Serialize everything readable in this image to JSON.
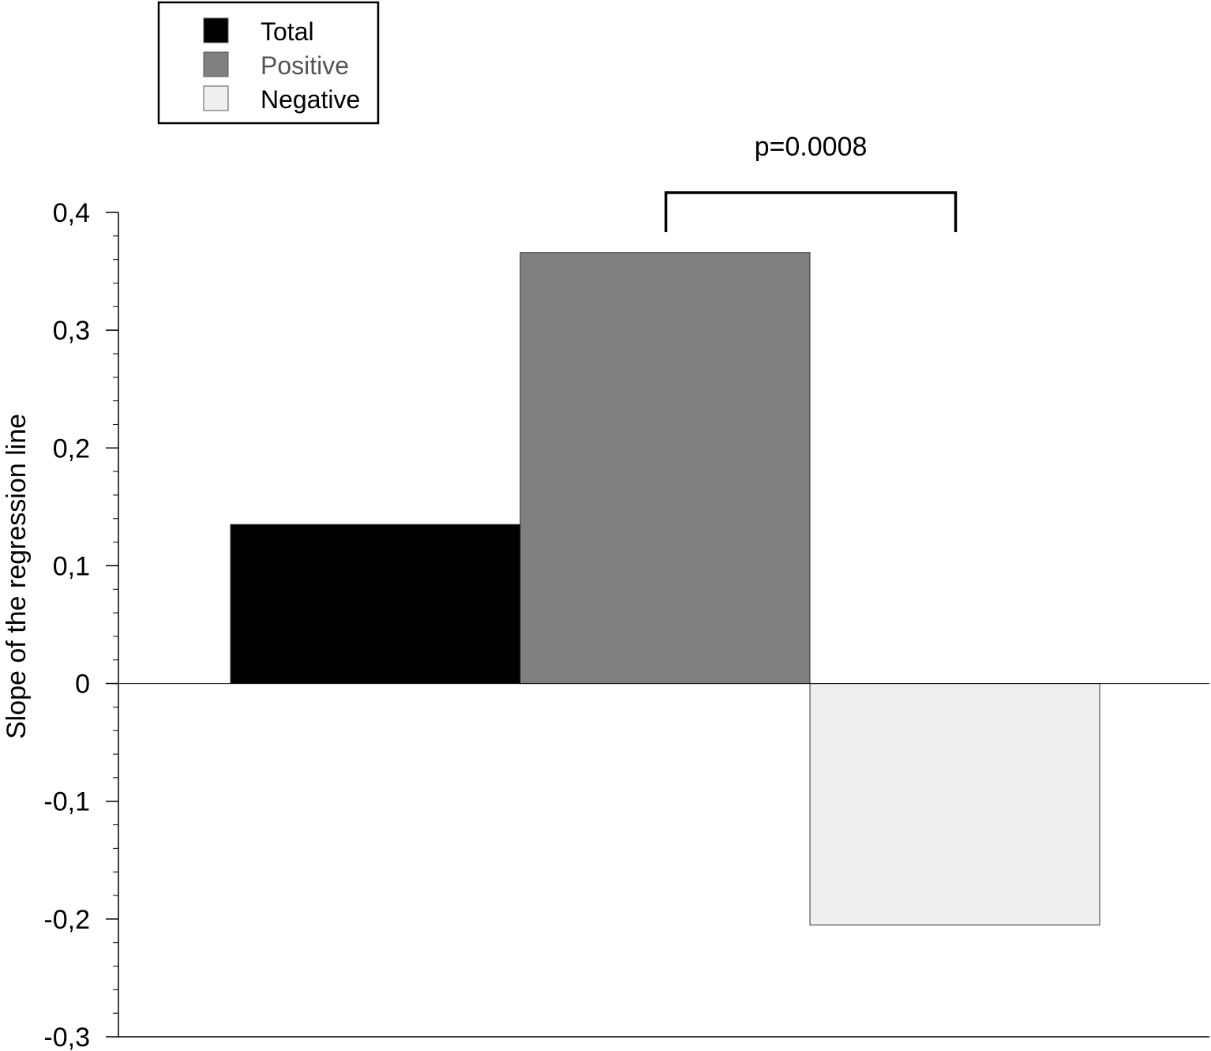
{
  "chart_data": {
    "type": "bar",
    "ylabel": "Slope of the regression line",
    "ylim": [
      -0.3,
      0.4
    ],
    "y_ticks": [
      "0,4",
      "0,3",
      "0,2",
      "0,1",
      "0",
      "-0,1",
      "-0,2",
      "-0,3"
    ],
    "y_tick_values": [
      0.4,
      0.3,
      0.2,
      0.1,
      0,
      -0.1,
      -0.2,
      -0.3
    ],
    "legend_position": "top-left",
    "series": [
      {
        "name": "Total",
        "value": 0.135,
        "color": "#000000",
        "label_color": "#000000"
      },
      {
        "name": "Positive",
        "value": 0.366,
        "color": "#808080",
        "label_color": "#555555"
      },
      {
        "name": "Negative",
        "value": -0.205,
        "color": "#efefef",
        "label_color": "#000000"
      }
    ],
    "annotation": {
      "text": "p=0.0008",
      "between": [
        "Positive",
        "Negative"
      ]
    }
  }
}
